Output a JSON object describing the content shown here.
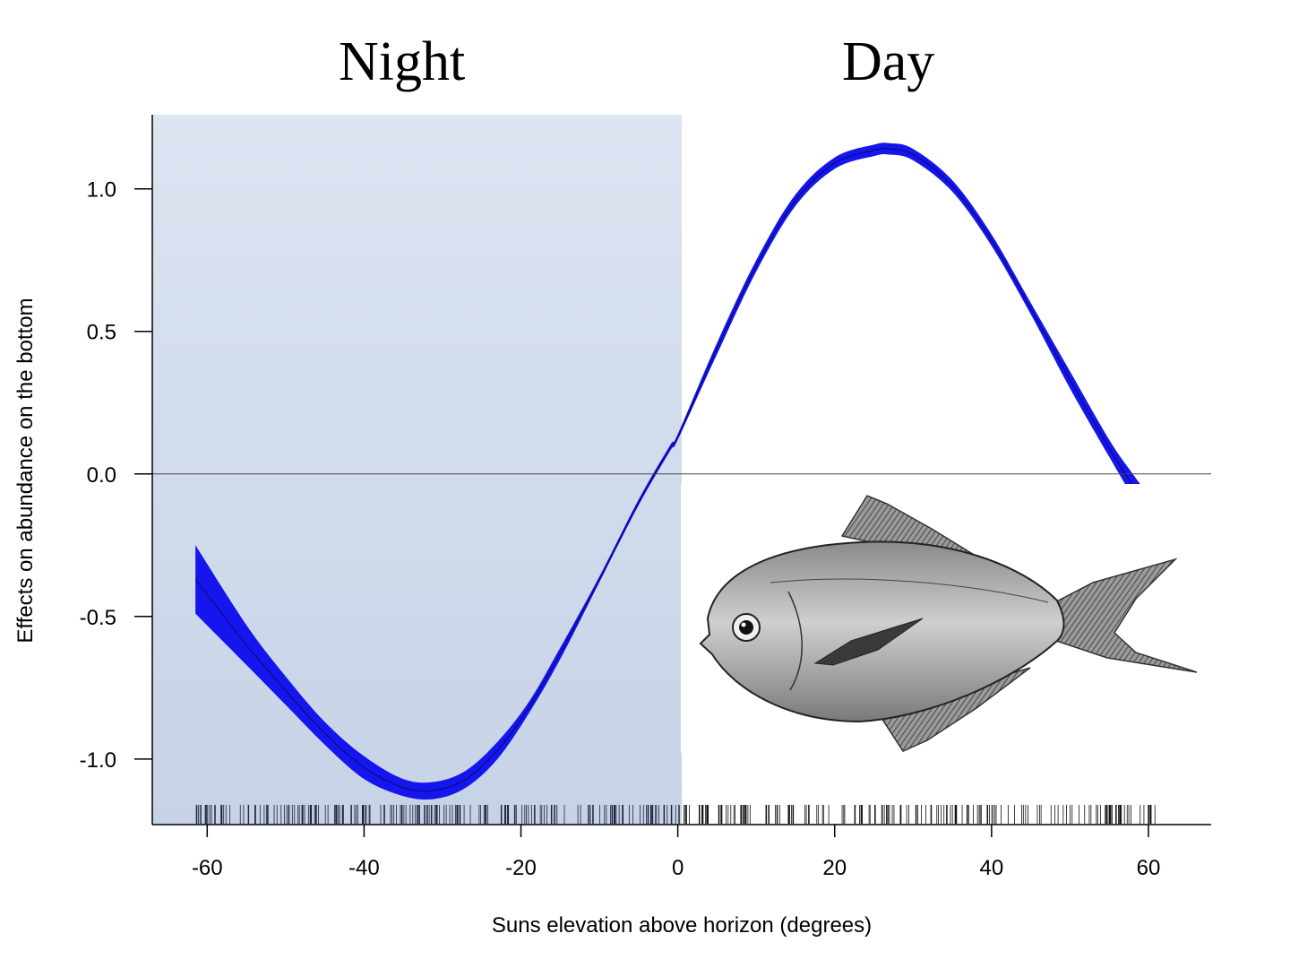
{
  "labels": {
    "night": "Night",
    "day": "Day"
  },
  "chart_data": {
    "type": "line",
    "xlabel": "Suns elevation above horizon (degrees)",
    "ylabel": "Effects on abundance on the bottom",
    "xlim": [
      -67,
      68
    ],
    "ylim": [
      -1.23,
      1.26
    ],
    "xticks": [
      -60,
      -40,
      -20,
      0,
      20,
      40,
      60
    ],
    "yticks": [
      -1.0,
      -0.5,
      0.0,
      0.5,
      1.0
    ],
    "ytick_labels": [
      "-1.0",
      "-0.5",
      "0.0",
      "0.5",
      "1.0"
    ],
    "night_region": [
      -67,
      0.5
    ],
    "reference_line_y": 0.0,
    "series": [
      {
        "color": "#1515ee",
        "x": [
          -61.5,
          -55,
          -50,
          -45,
          -40,
          -35,
          -31,
          -27,
          -23,
          -19,
          -15,
          -10,
          -5,
          -1,
          0,
          5,
          10,
          15,
          20,
          25,
          27,
          30,
          35,
          40,
          45,
          50,
          55,
          58,
          61
        ],
        "y": [
          -0.37,
          -0.6,
          -0.76,
          -0.91,
          -1.03,
          -1.1,
          -1.11,
          -1.07,
          -0.97,
          -0.82,
          -0.63,
          -0.37,
          -0.1,
          0.09,
          0.13,
          0.44,
          0.73,
          0.96,
          1.09,
          1.135,
          1.14,
          1.12,
          1.01,
          0.82,
          0.58,
          0.33,
          0.09,
          -0.04,
          -0.16
        ],
        "lower": [
          -0.49,
          -0.67,
          -0.81,
          -0.95,
          -1.07,
          -1.13,
          -1.14,
          -1.1,
          -1.0,
          -0.84,
          -0.65,
          -0.38,
          -0.11,
          0.08,
          0.12,
          0.42,
          0.71,
          0.94,
          1.07,
          1.115,
          1.12,
          1.1,
          0.99,
          0.8,
          0.56,
          0.3,
          0.06,
          -0.08,
          -0.21
        ],
        "upper": [
          -0.25,
          -0.53,
          -0.71,
          -0.87,
          -0.99,
          -1.07,
          -1.08,
          -1.04,
          -0.94,
          -0.8,
          -0.61,
          -0.36,
          -0.09,
          0.1,
          0.14,
          0.46,
          0.75,
          0.98,
          1.11,
          1.155,
          1.16,
          1.14,
          1.03,
          0.84,
          0.6,
          0.36,
          0.12,
          0.0,
          -0.11
        ]
      }
    ],
    "rug_range": [
      -61.5,
      63
    ]
  },
  "fish_image": {
    "icon": "fish-illustration-icon"
  }
}
